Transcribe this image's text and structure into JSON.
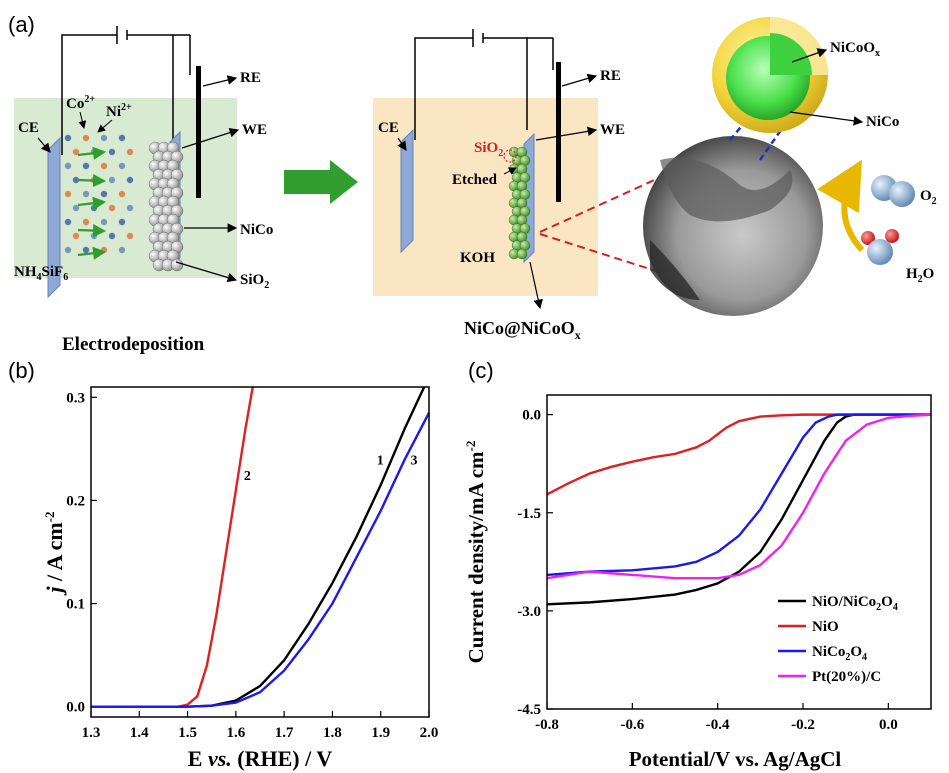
{
  "panel_a": {
    "letter": "(a)",
    "ce": "CE",
    "co": "Co",
    "co_sup": "2+",
    "ni": "Ni",
    "ni_sup": "2+",
    "re": "RE",
    "we": "WE",
    "nico": "NiCo",
    "sio2": "SiO",
    "sio2_sub": "2",
    "nh4": "NH",
    "nh4_sub": "4",
    "sif": "SiF",
    "sif_sub": "6",
    "electrodeposition": "Electrodeposition",
    "ce2": "CE",
    "re2": "RE",
    "we2": "WE",
    "sio2_red": "SiO",
    "sio2_red_sub": "2",
    "etched": "Etched",
    "koh": "KOH",
    "core_shell_label": "NiCo@NiCoO",
    "core_shell_sub": "x",
    "nicoox": "NiCoO",
    "nicoox_sub": "x",
    "nico_core": "NiCo",
    "o2": "O",
    "o2_sub": "2",
    "h2o_h": "H",
    "h2o_sub": "2",
    "h2o_o": "O",
    "colors": {
      "green_bg": "#d9ead3",
      "orange_bg": "#fbe6c4",
      "arrow_green": "#2f9e2f",
      "shell": "#f2d43a",
      "core": "#4ce04c",
      "red_dash": "#d02020",
      "blue_dash": "#2030c0"
    }
  },
  "panel_b": {
    "letter": "(b)",
    "ylabel_j": "j",
    "ylabel_rest": " / A cm",
    "ylabel_sup": "-2",
    "xlabel_e": "E ",
    "xlabel_vs": "vs.",
    "xlabel_rest": " (RHE) / V"
  },
  "panel_c": {
    "letter": "(c)",
    "ylabel": "Current density/mA cm",
    "ylabel_sup": "-2",
    "xlabel": "Potential/V vs. Ag/AgCl"
  },
  "chart_data": [
    {
      "type": "line",
      "xlim": [
        1.3,
        2.0
      ],
      "ylim": [
        -0.01,
        0.31
      ],
      "xticks": [
        "1.3",
        "1.4",
        "1.5",
        "1.6",
        "1.7",
        "1.8",
        "1.9",
        "2.0"
      ],
      "yticks": [
        "0.0",
        "0.1",
        "0.2",
        "0.3"
      ],
      "series": [
        {
          "name": "1",
          "color": "#000000",
          "x": [
            1.3,
            1.5,
            1.55,
            1.6,
            1.65,
            1.7,
            1.75,
            1.8,
            1.85,
            1.9,
            1.95,
            1.99
          ],
          "y": [
            0,
            0,
            0.001,
            0.006,
            0.02,
            0.045,
            0.08,
            0.12,
            0.165,
            0.215,
            0.27,
            0.315
          ]
        },
        {
          "name": "2",
          "color": "#e02020",
          "x": [
            1.3,
            1.48,
            1.5,
            1.52,
            1.54,
            1.56,
            1.58,
            1.6,
            1.62,
            1.635
          ],
          "y": [
            0,
            0,
            0.002,
            0.01,
            0.04,
            0.09,
            0.15,
            0.21,
            0.27,
            0.31
          ]
        },
        {
          "name": "3",
          "color": "#1a1aee",
          "x": [
            1.3,
            1.5,
            1.55,
            1.6,
            1.65,
            1.7,
            1.75,
            1.8,
            1.85,
            1.9,
            1.95,
            2.0
          ],
          "y": [
            0,
            0,
            0.001,
            0.004,
            0.014,
            0.035,
            0.065,
            0.1,
            0.145,
            0.19,
            0.24,
            0.285
          ]
        }
      ]
    },
    {
      "type": "line",
      "xlim": [
        -0.8,
        0.1
      ],
      "ylim": [
        -4.5,
        0.3
      ],
      "xticks": [
        "-0.8",
        "-0.6",
        "-0.4",
        "-0.2",
        "0.0"
      ],
      "yticks": [
        "0.0",
        "-1.5",
        "-3.0",
        "-4.5"
      ],
      "legend_position": "bottom-right",
      "series": [
        {
          "name": "NiO/NiCo2O4",
          "legend": [
            "NiO/NiCo",
            "2",
            "O",
            "4"
          ],
          "color": "#000000",
          "x": [
            -0.8,
            -0.7,
            -0.6,
            -0.5,
            -0.45,
            -0.4,
            -0.35,
            -0.3,
            -0.25,
            -0.2,
            -0.15,
            -0.12,
            -0.1,
            -0.08,
            0.0,
            0.1
          ],
          "y": [
            -2.9,
            -2.87,
            -2.82,
            -2.75,
            -2.68,
            -2.58,
            -2.4,
            -2.1,
            -1.6,
            -1.0,
            -0.4,
            -0.12,
            -0.03,
            0.0,
            0.0,
            0.0
          ]
        },
        {
          "name": "NiO",
          "legend": [
            "NiO"
          ],
          "color": "#e02020",
          "x": [
            -0.8,
            -0.75,
            -0.7,
            -0.65,
            -0.6,
            -0.55,
            -0.5,
            -0.45,
            -0.42,
            -0.4,
            -0.38,
            -0.35,
            -0.3,
            -0.25,
            -0.2,
            0.0,
            0.1
          ],
          "y": [
            -1.22,
            -1.05,
            -0.9,
            -0.8,
            -0.72,
            -0.65,
            -0.6,
            -0.5,
            -0.4,
            -0.3,
            -0.2,
            -0.1,
            -0.03,
            -0.01,
            0.0,
            0.0,
            0.0
          ]
        },
        {
          "name": "NiCo2O4",
          "legend": [
            "NiCo",
            "2",
            "O",
            "4"
          ],
          "color": "#1a1aee",
          "x": [
            -0.8,
            -0.7,
            -0.6,
            -0.5,
            -0.45,
            -0.4,
            -0.35,
            -0.3,
            -0.25,
            -0.2,
            -0.17,
            -0.14,
            -0.12,
            -0.1,
            0.0,
            0.1
          ],
          "y": [
            -2.45,
            -2.4,
            -2.38,
            -2.32,
            -2.25,
            -2.1,
            -1.85,
            -1.45,
            -0.9,
            -0.35,
            -0.12,
            -0.03,
            0.0,
            0.0,
            0.0,
            0.0
          ]
        },
        {
          "name": "Pt(20%)/C",
          "legend": [
            "Pt(20%)/C"
          ],
          "color": "#ee22ee",
          "x": [
            -0.8,
            -0.7,
            -0.6,
            -0.5,
            -0.4,
            -0.35,
            -0.3,
            -0.25,
            -0.2,
            -0.15,
            -0.1,
            -0.05,
            0.0,
            0.05,
            0.1
          ],
          "y": [
            -2.5,
            -2.4,
            -2.45,
            -2.5,
            -2.5,
            -2.45,
            -2.3,
            -2.0,
            -1.5,
            -0.9,
            -0.4,
            -0.15,
            -0.05,
            -0.02,
            0.0
          ]
        }
      ]
    }
  ]
}
